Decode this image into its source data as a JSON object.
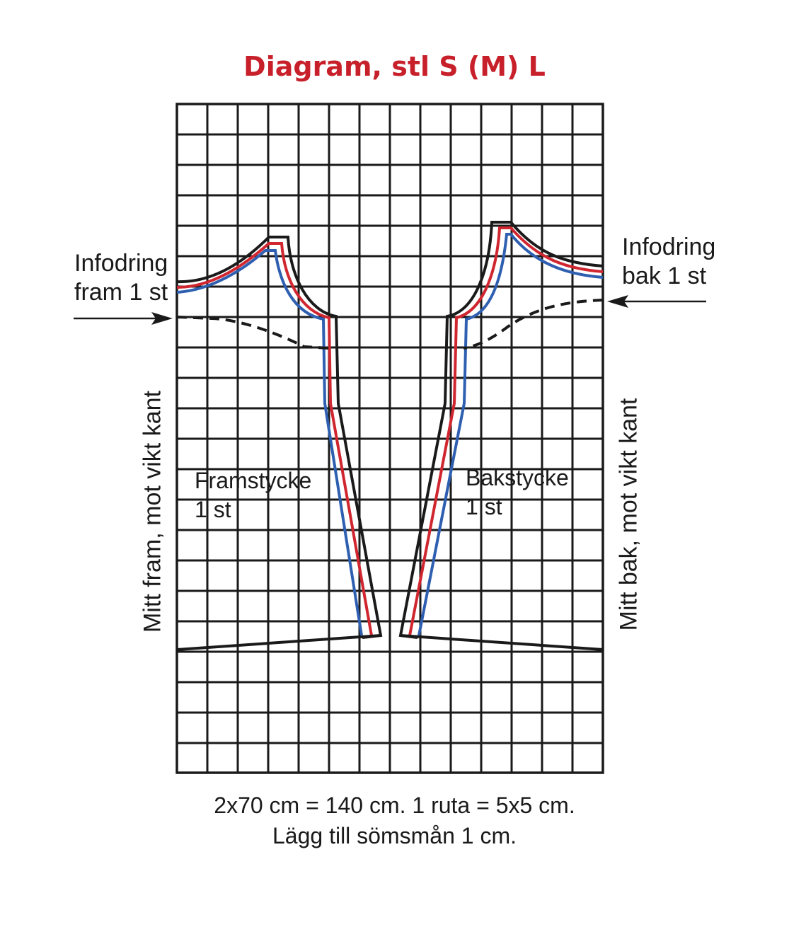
{
  "title": "Diagram, stl S (M) L",
  "colors": {
    "title": "#c8202b",
    "size_s": "#2e5fb0",
    "size_m": "#d02630",
    "size_l": "#1a1a1a",
    "grid": "#1a1a1a"
  },
  "labels": {
    "front_lining": [
      "Infodring",
      "fram 1 st"
    ],
    "back_lining": [
      "Infodring",
      "bak 1 st"
    ],
    "front_piece": [
      "Framstycke",
      "1 st"
    ],
    "back_piece": [
      "Bakstycke",
      "1 st"
    ],
    "front_fold": "Mitt fram, mot vikt kant",
    "back_fold": "Mitt bak, mot vikt kant"
  },
  "footer": {
    "line1": "2x70 cm = 140 cm. 1 ruta = 5x5 cm.",
    "line2": "Lägg till sömsmån 1 cm."
  },
  "icons": [
    "arrow-right-icon",
    "arrow-left-icon"
  ]
}
